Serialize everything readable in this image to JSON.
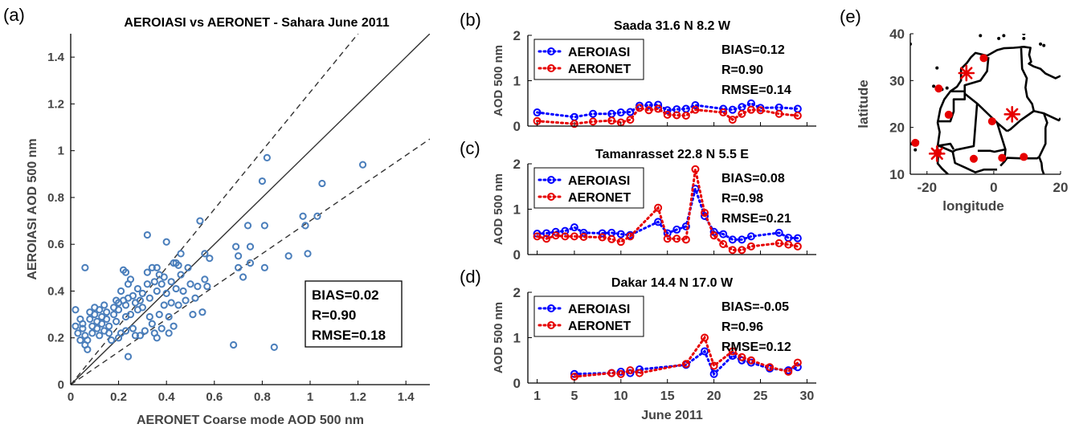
{
  "colors": {
    "blue": "#0000ff",
    "red": "#e60000",
    "scatter": "#4a7ebb",
    "axis": "#000000",
    "land": "#000000"
  },
  "panels": {
    "a": {
      "letter": "(a)",
      "chart_data": {
        "type": "scatter",
        "title": "AEROIASI vs AERONET - Sahara June 2011",
        "xlabel": "AERONET Coarse mode AOD 500 nm",
        "ylabel": "AEROIASI AOD 500 nm",
        "xlim": [
          0,
          1.5
        ],
        "ylim": [
          0,
          1.5
        ],
        "xticks": [
          0,
          0.2,
          0.4,
          0.6,
          0.8,
          1,
          1.2,
          1.4
        ],
        "xtick_labels": [
          "0",
          "0.2",
          "0.4",
          "0.6",
          "0.8",
          "1",
          "1.2",
          "1.4"
        ],
        "yticks": [
          0,
          0.2,
          0.4,
          0.6,
          0.8,
          1,
          1.2,
          1.4
        ],
        "ytick_labels": [
          "0",
          "0.2",
          "0.4",
          "0.6",
          "0.8",
          "1",
          "1.2",
          "1.4"
        ],
        "reference_lines": [
          {
            "slope": 1,
            "style": "solid"
          },
          {
            "slope": 1.25,
            "style": "dashed"
          },
          {
            "slope": 0.7,
            "style": "dashed"
          }
        ],
        "stats": [
          "BIAS=0.02",
          "R=0.90",
          "RMSE=0.18"
        ],
        "points": [
          [
            0.02,
            0.32
          ],
          [
            0.02,
            0.25
          ],
          [
            0.03,
            0.22
          ],
          [
            0.04,
            0.28
          ],
          [
            0.04,
            0.19
          ],
          [
            0.05,
            0.26
          ],
          [
            0.05,
            0.24
          ],
          [
            0.06,
            0.21
          ],
          [
            0.06,
            0.17
          ],
          [
            0.07,
            0.19
          ],
          [
            0.07,
            0.15
          ],
          [
            0.06,
            0.5
          ],
          [
            0.08,
            0.31
          ],
          [
            0.08,
            0.28
          ],
          [
            0.09,
            0.25
          ],
          [
            0.09,
            0.22
          ],
          [
            0.1,
            0.33
          ],
          [
            0.1,
            0.3
          ],
          [
            0.11,
            0.27
          ],
          [
            0.11,
            0.24
          ],
          [
            0.12,
            0.21
          ],
          [
            0.12,
            0.32
          ],
          [
            0.13,
            0.29
          ],
          [
            0.13,
            0.26
          ],
          [
            0.14,
            0.23
          ],
          [
            0.14,
            0.34
          ],
          [
            0.15,
            0.31
          ],
          [
            0.15,
            0.28
          ],
          [
            0.16,
            0.25
          ],
          [
            0.16,
            0.22
          ],
          [
            0.17,
            0.19
          ],
          [
            0.18,
            0.33
          ],
          [
            0.18,
            0.3
          ],
          [
            0.19,
            0.27
          ],
          [
            0.19,
            0.36
          ],
          [
            0.2,
            0.35
          ],
          [
            0.2,
            0.32
          ],
          [
            0.2,
            0.2
          ],
          [
            0.21,
            0.4
          ],
          [
            0.21,
            0.22
          ],
          [
            0.22,
            0.49
          ],
          [
            0.22,
            0.36
          ],
          [
            0.23,
            0.48
          ],
          [
            0.23,
            0.34
          ],
          [
            0.23,
            0.29
          ],
          [
            0.23,
            0.23
          ],
          [
            0.24,
            0.43
          ],
          [
            0.24,
            0.37
          ],
          [
            0.24,
            0.12
          ],
          [
            0.25,
            0.45
          ],
          [
            0.25,
            0.3
          ],
          [
            0.26,
            0.38
          ],
          [
            0.26,
            0.24
          ],
          [
            0.27,
            0.35
          ],
          [
            0.27,
            0.21
          ],
          [
            0.28,
            0.41
          ],
          [
            0.28,
            0.32
          ],
          [
            0.29,
            0.36
          ],
          [
            0.29,
            0.21
          ],
          [
            0.3,
            0.39
          ],
          [
            0.3,
            0.33
          ],
          [
            0.31,
            0.23
          ],
          [
            0.32,
            0.64
          ],
          [
            0.32,
            0.48
          ],
          [
            0.32,
            0.43
          ],
          [
            0.33,
            0.37
          ],
          [
            0.33,
            0.29
          ],
          [
            0.34,
            0.5
          ],
          [
            0.34,
            0.26
          ],
          [
            0.35,
            0.44
          ],
          [
            0.35,
            0.22
          ],
          [
            0.36,
            0.5
          ],
          [
            0.36,
            0.4
          ],
          [
            0.36,
            0.2
          ],
          [
            0.37,
            0.47
          ],
          [
            0.37,
            0.3
          ],
          [
            0.38,
            0.43
          ],
          [
            0.38,
            0.24
          ],
          [
            0.39,
            0.46
          ],
          [
            0.39,
            0.34
          ],
          [
            0.4,
            0.61
          ],
          [
            0.4,
            0.39
          ],
          [
            0.41,
            0.29
          ],
          [
            0.41,
            0.22
          ],
          [
            0.42,
            0.44
          ],
          [
            0.42,
            0.35
          ],
          [
            0.43,
            0.52
          ],
          [
            0.43,
            0.25
          ],
          [
            0.44,
            0.41
          ],
          [
            0.44,
            0.52
          ],
          [
            0.45,
            0.34
          ],
          [
            0.45,
            0.51
          ],
          [
            0.46,
            0.47
          ],
          [
            0.46,
            0.56
          ],
          [
            0.47,
            0.4
          ],
          [
            0.48,
            0.36
          ],
          [
            0.49,
            0.5
          ],
          [
            0.5,
            0.43
          ],
          [
            0.51,
            0.3
          ],
          [
            0.52,
            0.37
          ],
          [
            0.53,
            0.42
          ],
          [
            0.54,
            0.7
          ],
          [
            0.55,
            0.31
          ],
          [
            0.56,
            0.56
          ],
          [
            0.56,
            0.45
          ],
          [
            0.57,
            0.42
          ],
          [
            0.58,
            0.54
          ],
          [
            0.68,
            0.17
          ],
          [
            0.69,
            0.59
          ],
          [
            0.7,
            0.55
          ],
          [
            0.7,
            0.5
          ],
          [
            0.72,
            0.46
          ],
          [
            0.74,
            0.68
          ],
          [
            0.75,
            0.59
          ],
          [
            0.75,
            0.52
          ],
          [
            0.8,
            0.87
          ],
          [
            0.81,
            0.68
          ],
          [
            0.81,
            0.5
          ],
          [
            0.82,
            0.97
          ],
          [
            0.85,
            0.16
          ],
          [
            0.91,
            0.55
          ],
          [
            0.97,
            0.72
          ],
          [
            0.98,
            0.68
          ],
          [
            0.99,
            0.56
          ],
          [
            1.03,
            0.72
          ],
          [
            1.05,
            0.86
          ],
          [
            1.22,
            0.94
          ]
        ]
      }
    },
    "b": {
      "letter": "(b)",
      "chart_data": {
        "type": "line",
        "title": "Saada 31.6 N 8.2 W",
        "ylabel": "AOD 500 nm",
        "xlim": [
          0,
          31
        ],
        "ylim": [
          0,
          2
        ],
        "yticks": [
          0,
          1,
          2
        ],
        "ytick_labels": [
          "0",
          "1",
          "2"
        ],
        "legend": "top-left",
        "stats": [
          "BIAS=0.12",
          "R=0.90",
          "RMSE=0.14"
        ],
        "series": [
          {
            "name": "AEROIASI",
            "color": "blue",
            "x": [
              1,
              5,
              7,
              9,
              10,
              11,
              12,
              13,
              14,
              15,
              16,
              17,
              18,
              21,
              22,
              23,
              24,
              25,
              27,
              29
            ],
            "y": [
              0.3,
              0.2,
              0.27,
              0.27,
              0.3,
              0.31,
              0.45,
              0.46,
              0.47,
              0.35,
              0.37,
              0.38,
              0.46,
              0.38,
              0.36,
              0.42,
              0.5,
              0.4,
              0.41,
              0.38
            ]
          },
          {
            "name": "AERONET",
            "color": "red",
            "x": [
              1,
              5,
              7,
              9,
              10,
              11,
              12,
              13,
              14,
              15,
              16,
              17,
              18,
              21,
              22,
              23,
              24,
              25,
              27,
              29
            ],
            "y": [
              0.11,
              0.05,
              0.1,
              0.12,
              0.08,
              0.14,
              0.4,
              0.35,
              0.38,
              0.25,
              0.24,
              0.23,
              0.36,
              0.3,
              0.14,
              0.27,
              0.36,
              0.35,
              0.27,
              0.23
            ]
          }
        ]
      }
    },
    "c": {
      "letter": "(c)",
      "chart_data": {
        "type": "line",
        "title": "Tamanrasset 22.8 N 5.5 E",
        "ylabel": "AOD 500 nm",
        "xlim": [
          0,
          31
        ],
        "ylim": [
          0,
          2
        ],
        "yticks": [
          0,
          1,
          2
        ],
        "ytick_labels": [
          "0",
          "1",
          "2"
        ],
        "legend": "top-left",
        "stats": [
          "BIAS=0.08",
          "R=0.98",
          "RMSE=0.21"
        ],
        "series": [
          {
            "name": "AEROIASI",
            "color": "blue",
            "x": [
              1,
              2,
              3,
              4,
              5,
              6,
              8,
              9,
              10,
              11,
              14,
              15,
              16,
              17,
              18,
              19,
              20,
              21,
              22,
              23,
              24,
              27,
              28,
              29
            ],
            "y": [
              0.46,
              0.47,
              0.5,
              0.52,
              0.6,
              0.48,
              0.47,
              0.48,
              0.45,
              0.43,
              0.72,
              0.47,
              0.55,
              0.62,
              1.45,
              0.85,
              0.5,
              0.45,
              0.33,
              0.33,
              0.4,
              0.48,
              0.37,
              0.36
            ]
          },
          {
            "name": "AERONET",
            "color": "red",
            "x": [
              1,
              2,
              3,
              4,
              5,
              6,
              8,
              9,
              10,
              11,
              14,
              15,
              16,
              17,
              18,
              19,
              20,
              21,
              22,
              23,
              24,
              27,
              28,
              29
            ],
            "y": [
              0.4,
              0.35,
              0.42,
              0.4,
              0.4,
              0.39,
              0.38,
              0.34,
              0.28,
              0.4,
              1.03,
              0.35,
              0.35,
              0.33,
              1.88,
              0.92,
              0.42,
              0.23,
              0.1,
              0.1,
              0.18,
              0.25,
              0.22,
              0.18
            ]
          }
        ]
      }
    },
    "d": {
      "letter": "(d)",
      "chart_data": {
        "type": "line",
        "title": "Dakar 14.4 N 17.0 W",
        "ylabel": "AOD 500 nm",
        "xlabel": "June 2011",
        "xlim": [
          0,
          31
        ],
        "ylim": [
          0,
          2
        ],
        "xticks": [
          1,
          5,
          10,
          15,
          20,
          25,
          30
        ],
        "xtick_labels": [
          "1",
          "5",
          "10",
          "15",
          "20",
          "25",
          "30"
        ],
        "yticks": [
          0,
          1,
          2
        ],
        "ytick_labels": [
          "0",
          "1",
          "2"
        ],
        "legend": "top-left",
        "stats": [
          "BIAS=-0.05",
          "R=0.96",
          "RMSE=0.12"
        ],
        "series": [
          {
            "name": "AEROIASI",
            "color": "blue",
            "x": [
              5,
              9,
              10,
              11,
              12,
              17,
              19,
              20,
              22,
              23,
              24,
              26,
              28,
              29
            ],
            "y": [
              0.2,
              0.22,
              0.25,
              0.22,
              0.3,
              0.4,
              0.7,
              0.2,
              0.6,
              0.5,
              0.45,
              0.32,
              0.28,
              0.35
            ]
          },
          {
            "name": "AERONET",
            "color": "red",
            "x": [
              5,
              9,
              10,
              11,
              12,
              17,
              19,
              20,
              22,
              23,
              24,
              26,
              28,
              29
            ],
            "y": [
              0.14,
              0.22,
              0.2,
              0.28,
              0.22,
              0.42,
              1.0,
              0.38,
              0.7,
              0.57,
              0.5,
              0.35,
              0.25,
              0.45
            ]
          }
        ]
      }
    },
    "e": {
      "letter": "(e)",
      "chart_data": {
        "type": "scatter",
        "xlabel": "longitude",
        "ylabel": "latitude",
        "xlim": [
          -25,
          20
        ],
        "ylim": [
          10,
          40
        ],
        "xticks": [
          -20,
          0,
          20
        ],
        "xtick_labels": [
          "-20",
          "0",
          "20"
        ],
        "yticks": [
          10,
          20,
          30,
          40
        ],
        "ytick_labels": [
          "10",
          "20",
          "30",
          "40"
        ],
        "highlighted_stations": [
          [
            -8.2,
            31.6
          ],
          [
            5.5,
            22.8
          ],
          [
            -17.0,
            14.4
          ]
        ],
        "stations": [
          [
            -23.5,
            16.7
          ],
          [
            -16.5,
            28.3
          ],
          [
            -13.5,
            22.7
          ],
          [
            -3.0,
            34.8
          ],
          [
            -0.5,
            21.3
          ],
          [
            -6.0,
            13.3
          ],
          [
            2.5,
            13.5
          ],
          [
            9.0,
            13.7
          ],
          [
            -16.8,
            14.6
          ]
        ]
      }
    }
  }
}
